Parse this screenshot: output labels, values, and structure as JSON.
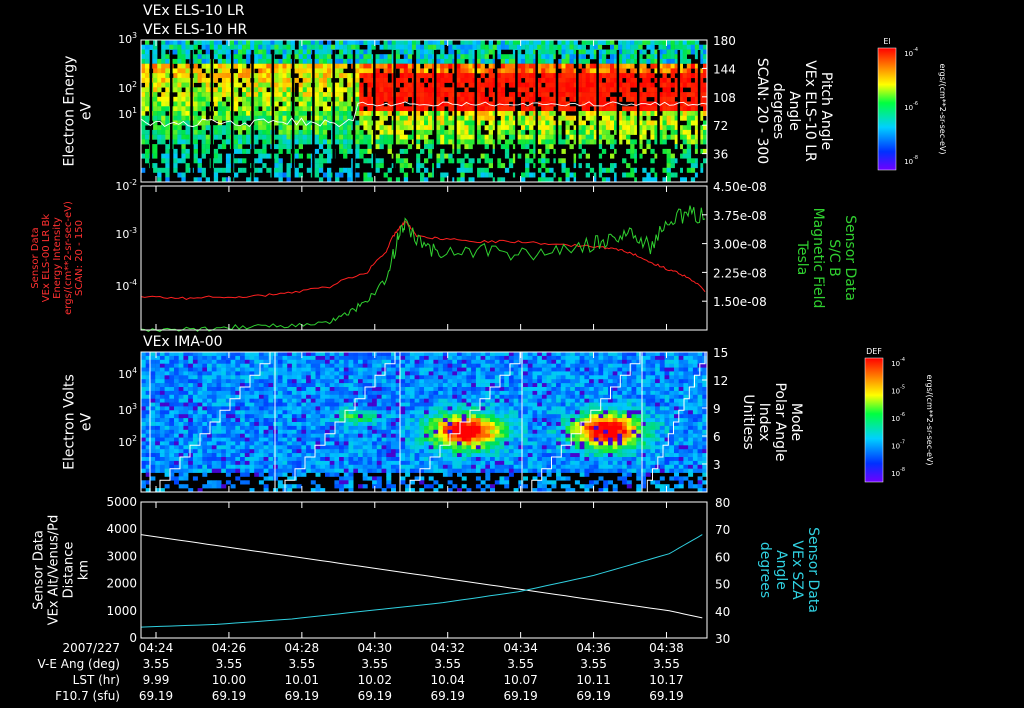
{
  "titles": {
    "els_lr": "VEx ELS-10 LR",
    "els_hr": "VEx ELS-10 HR",
    "ima": "VEx IMA-00"
  },
  "colors": {
    "background": "#000000",
    "red_line": "#ff2020",
    "green_line": "#30d030",
    "cyan_line": "#30d0e0",
    "white_line": "#ffffff"
  },
  "chart_data": [
    {
      "type": "heatmap",
      "name": "panel1",
      "title": "VEx ELS-10 LR / VEx ELS-10 HR",
      "ylabel_lines": [
        "Electron Energy",
        "eV"
      ],
      "yscale": "log",
      "ylim": [
        0.3,
        1000
      ],
      "y_ticks": [
        {
          "base": "10",
          "exp": "1"
        },
        {
          "base": "10",
          "exp": "2"
        },
        {
          "base": "10",
          "exp": "3"
        }
      ],
      "right_ylabel_lines": [
        "Pitch Angle",
        "VEx ELS-10 LR",
        "Angle",
        "degrees",
        "SCAN: 20 - 300"
      ],
      "right_ylim": [
        0,
        180
      ],
      "right_ticks": [
        "36",
        "72",
        "108",
        "144",
        "180"
      ],
      "colorbar": {
        "title": "El",
        "label": "ergs/(cm**2-sr-sec-eV)",
        "ticks": [
          {
            "base": "10",
            "exp": "-4"
          },
          {
            "base": "10",
            "exp": "-6"
          },
          {
            "base": "10",
            "exp": "-8"
          }
        ]
      },
      "overlay_line": "pitch angle (white)"
    },
    {
      "type": "line",
      "name": "panel2",
      "left_ylabel_lines": [
        "Sensor Data",
        "VEx ELS-00 LR Bk",
        "Energy Intensity",
        "ergs/(cm**2-sr-sec-eV)",
        "SCAN: 20 - 150"
      ],
      "yscale": "log",
      "ylim": [
        1e-05,
        0.01
      ],
      "y_ticks": [
        {
          "base": "10",
          "exp": "-2"
        },
        {
          "base": "10",
          "exp": "-3"
        },
        {
          "base": "10",
          "exp": "-4"
        }
      ],
      "right_ylabel_lines": [
        "Sensor Data",
        "S/C B",
        "Magnetic Field",
        "Tesla"
      ],
      "right_ylim": [
        1e-08,
        4.5e-08
      ],
      "right_ticks": [
        "1.50e-08",
        "2.25e-08",
        "3.00e-08",
        "3.75e-08",
        "4.50e-08"
      ],
      "series": [
        {
          "color": "#ff2020",
          "x": [
            0,
            1,
            2,
            3,
            4,
            5,
            6,
            6.5,
            6.8,
            7,
            7.3,
            8,
            9,
            10,
            11,
            12,
            12.5,
            13,
            13.5,
            14,
            14.5,
            15
          ],
          "y": [
            5e-05,
            4.5e-05,
            5e-05,
            5e-05,
            6e-05,
            8e-05,
            0.00016,
            0.0004,
            0.0012,
            0.0018,
            0.0009,
            0.0008,
            0.0007,
            0.0007,
            0.0006,
            0.00055,
            0.0005,
            0.0004,
            0.00025,
            0.00018,
            0.00012,
            6e-05
          ]
        },
        {
          "color": "#30d030",
          "axis": "right",
          "x": [
            0,
            1,
            2,
            3,
            4,
            5,
            5.5,
            6,
            6.5,
            6.8,
            7,
            7.5,
            8,
            9,
            10,
            11,
            12,
            12.5,
            13,
            13.5,
            14,
            14.5,
            15
          ],
          "y": [
            1e-08,
            1e-08,
            1.05e-08,
            1.1e-08,
            1.1e-08,
            1.2e-08,
            1.4e-08,
            1.7e-08,
            2.2e-08,
            3.2e-08,
            3.5e-08,
            3e-08,
            2.9e-08,
            2.95e-08,
            2.85e-08,
            2.9e-08,
            3.1e-08,
            3.2e-08,
            3.4e-08,
            3e-08,
            3.7e-08,
            3.8e-08,
            3.75e-08
          ]
        }
      ]
    },
    {
      "type": "heatmap",
      "name": "panel3",
      "title": "VEx IMA-00",
      "ylabel_lines": [
        "Electron Volts",
        "eV"
      ],
      "yscale": "log",
      "ylim": [
        10,
        30000
      ],
      "y_ticks": [
        {
          "base": "10",
          "exp": "2"
        },
        {
          "base": "10",
          "exp": "3"
        },
        {
          "base": "10",
          "exp": "4"
        }
      ],
      "right_ylabel_lines": [
        "Mode",
        "Polar Angle",
        "Index",
        "Unitless"
      ],
      "right_ylim": [
        0,
        15
      ],
      "right_ticks": [
        "3",
        "6",
        "9",
        "12",
        "15"
      ],
      "colorbar": {
        "title": "DEF",
        "label": "ergs/(cm**2-sr-sec-eV)",
        "ticks": [
          {
            "base": "10",
            "exp": "-4"
          },
          {
            "base": "10",
            "exp": "-5"
          },
          {
            "base": "10",
            "exp": "-6"
          },
          {
            "base": "10",
            "exp": "-7"
          },
          {
            "base": "10",
            "exp": "-8"
          }
        ]
      },
      "overlay_line": "polar angle index staircase (white)"
    },
    {
      "type": "line",
      "name": "panel4",
      "left_ylabel_lines": [
        "Sensor Data",
        "VEx Alt/Venus/Pd",
        "Distance",
        "km"
      ],
      "ylim": [
        0,
        5000
      ],
      "y_ticks": [
        "0",
        "1000",
        "2000",
        "3000",
        "4000",
        "5000"
      ],
      "right_ylabel_lines": [
        "Sensor Data",
        "VEx SZA",
        "Angle",
        "degrees"
      ],
      "right_ylim": [
        30,
        80
      ],
      "right_ticks": [
        "30",
        "40",
        "50",
        "60",
        "70",
        "80"
      ],
      "series": [
        {
          "color": "#ffffff",
          "x": [
            0,
            2,
            4,
            6,
            8,
            10,
            12,
            14,
            15
          ],
          "y": [
            3800,
            3400,
            3000,
            2600,
            2200,
            1800,
            1400,
            1000,
            700
          ]
        },
        {
          "color": "#30d0e0",
          "axis": "right",
          "x": [
            0,
            2,
            4,
            6,
            8,
            10,
            12,
            14,
            15
          ],
          "y": [
            34,
            35,
            37,
            40,
            43,
            47,
            53,
            61,
            69
          ]
        }
      ]
    }
  ],
  "x_axis": {
    "date_label": "2007/227",
    "ticks": [
      "04:24",
      "04:26",
      "04:28",
      "04:30",
      "04:32",
      "04:34",
      "04:36",
      "04:38"
    ],
    "rows": [
      {
        "label": "V-E Ang (deg)",
        "values": [
          "3.55",
          "3.55",
          "3.55",
          "3.55",
          "3.55",
          "3.55",
          "3.55",
          "3.55"
        ]
      },
      {
        "label": "LST (hr)",
        "values": [
          "9.99",
          "10.00",
          "10.01",
          "10.02",
          "10.04",
          "10.07",
          "10.11",
          "10.17"
        ]
      },
      {
        "label": "F10.7 (sfu)",
        "values": [
          "69.19",
          "69.19",
          "69.19",
          "69.19",
          "69.19",
          "69.19",
          "69.19",
          "69.19"
        ]
      }
    ]
  }
}
